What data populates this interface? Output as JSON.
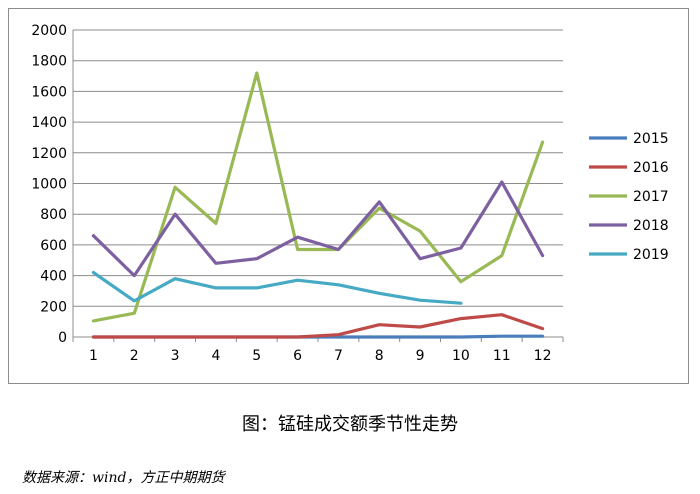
{
  "chart_data": {
    "type": "line",
    "categories": [
      "1",
      "2",
      "3",
      "4",
      "5",
      "6",
      "7",
      "8",
      "9",
      "10",
      "11",
      "12"
    ],
    "ylim": [
      0,
      2000
    ],
    "yticks": [
      0,
      200,
      400,
      600,
      800,
      1000,
      1200,
      1400,
      1600,
      1800,
      2000
    ],
    "ytick_labels": [
      "0",
      "200",
      "400",
      "600",
      "800",
      "1000",
      "1200",
      "1400",
      "1600",
      "1800",
      "2000"
    ],
    "grid": "horizontal",
    "legend_position": "right",
    "series": [
      {
        "name": "2015",
        "color": "#4a7ebb",
        "values": [
          0,
          0,
          0,
          0,
          0,
          0,
          0,
          0,
          0,
          0,
          5,
          5
        ]
      },
      {
        "name": "2016",
        "color": "#be4b48",
        "values": [
          0,
          0,
          0,
          0,
          0,
          0,
          15,
          80,
          65,
          120,
          145,
          55
        ]
      },
      {
        "name": "2017",
        "color": "#98b954",
        "values": [
          105,
          155,
          975,
          740,
          1720,
          570,
          570,
          840,
          690,
          360,
          530,
          1270
        ]
      },
      {
        "name": "2018",
        "color": "#7d60a0",
        "values": [
          660,
          400,
          800,
          480,
          510,
          650,
          570,
          880,
          510,
          580,
          1010,
          530
        ]
      },
      {
        "name": "2019",
        "color": "#46aac5",
        "values": [
          420,
          235,
          380,
          320,
          320,
          370,
          340,
          285,
          240,
          220,
          null,
          null
        ]
      }
    ]
  },
  "caption": "图：锰硅成交额季节性走势",
  "source": "数据来源：wind，方正中期期货"
}
